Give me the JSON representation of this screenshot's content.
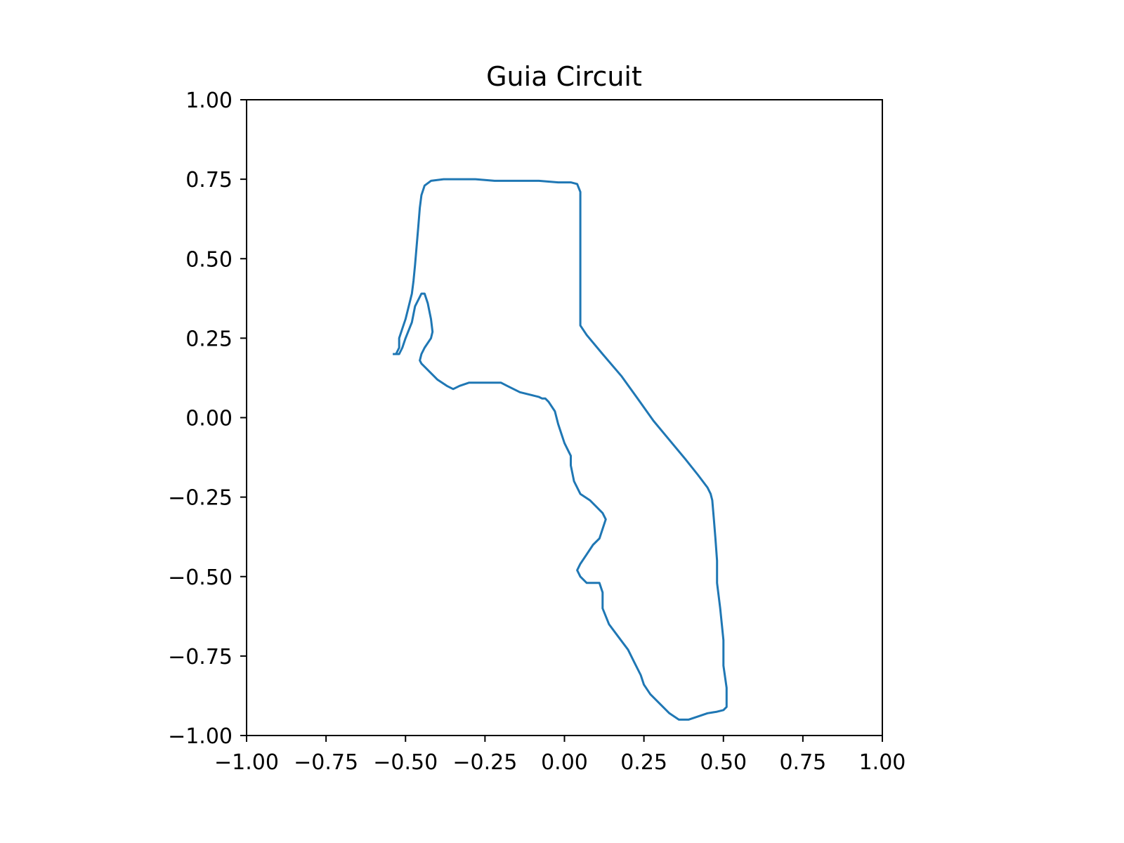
{
  "chart_data": {
    "type": "line",
    "title": "Guia Circuit",
    "xlabel": "",
    "ylabel": "",
    "xlim": [
      -1.0,
      1.0
    ],
    "ylim": [
      -1.0,
      1.0
    ],
    "grid": false,
    "xticks": [
      -1.0,
      -0.75,
      -0.5,
      -0.25,
      0.0,
      0.25,
      0.5,
      0.75,
      1.0
    ],
    "yticks": [
      -1.0,
      -0.75,
      -0.5,
      -0.25,
      0.0,
      0.25,
      0.5,
      0.75,
      1.0
    ],
    "xtick_labels": [
      "−1.00",
      "−0.75",
      "−0.50",
      "−0.25",
      "0.00",
      "0.25",
      "0.50",
      "0.75",
      "1.00"
    ],
    "ytick_labels": [
      "−1.00",
      "−0.75",
      "−0.50",
      "−0.25",
      "0.00",
      "0.25",
      "0.50",
      "0.75",
      "1.00"
    ],
    "line_color": "#1f77b4",
    "series": [
      {
        "x": [
          -0.54,
          -0.52,
          -0.51,
          -0.5,
          -0.48,
          -0.47,
          -0.45,
          -0.44,
          -0.43,
          -0.42,
          -0.415,
          -0.42,
          -0.44,
          -0.45,
          -0.455,
          -0.45,
          -0.44,
          -0.4,
          -0.37,
          -0.35,
          -0.33,
          -0.3,
          -0.25,
          -0.23,
          -0.2,
          -0.18,
          -0.14,
          -0.1,
          -0.08,
          -0.07,
          -0.06,
          -0.05,
          -0.03,
          -0.02,
          -0.01,
          0.0,
          0.01,
          0.02,
          0.02,
          0.03,
          0.05,
          0.08,
          0.1,
          0.12,
          0.13,
          0.12,
          0.11,
          0.09,
          0.07,
          0.05,
          0.04,
          0.05,
          0.07,
          0.09,
          0.11,
          0.12,
          0.12,
          0.14,
          0.17,
          0.2,
          0.22,
          0.24,
          0.25,
          0.27,
          0.3,
          0.33,
          0.36,
          0.39,
          0.42,
          0.45,
          0.48,
          0.5,
          0.51,
          0.51,
          0.5,
          0.5,
          0.49,
          0.48,
          0.48,
          0.475,
          0.47,
          0.465,
          0.46,
          0.45,
          0.42,
          0.38,
          0.33,
          0.28,
          0.23,
          0.18,
          0.12,
          0.07,
          0.05,
          0.05,
          0.05,
          0.05,
          0.05,
          0.05,
          0.04,
          0.02,
          -0.02,
          -0.08,
          -0.15,
          -0.22,
          -0.28,
          -0.34,
          -0.38,
          -0.42,
          -0.44,
          -0.45,
          -0.455,
          -0.46,
          -0.465,
          -0.47,
          -0.475,
          -0.48,
          -0.49,
          -0.5,
          -0.51,
          -0.52,
          -0.52,
          -0.53,
          -0.54
        ],
        "y": [
          0.2,
          0.2,
          0.22,
          0.25,
          0.3,
          0.35,
          0.39,
          0.39,
          0.36,
          0.31,
          0.27,
          0.25,
          0.22,
          0.2,
          0.18,
          0.17,
          0.16,
          0.12,
          0.1,
          0.09,
          0.1,
          0.11,
          0.11,
          0.11,
          0.11,
          0.1,
          0.08,
          0.07,
          0.065,
          0.06,
          0.06,
          0.05,
          0.02,
          -0.02,
          -0.05,
          -0.08,
          -0.1,
          -0.12,
          -0.15,
          -0.2,
          -0.24,
          -0.26,
          -0.28,
          -0.3,
          -0.32,
          -0.35,
          -0.38,
          -0.4,
          -0.43,
          -0.46,
          -0.48,
          -0.5,
          -0.52,
          -0.52,
          -0.52,
          -0.55,
          -0.6,
          -0.65,
          -0.69,
          -0.73,
          -0.77,
          -0.81,
          -0.84,
          -0.87,
          -0.9,
          -0.93,
          -0.95,
          -0.95,
          -0.94,
          -0.93,
          -0.925,
          -0.92,
          -0.91,
          -0.85,
          -0.78,
          -0.7,
          -0.6,
          -0.52,
          -0.45,
          -0.38,
          -0.32,
          -0.26,
          -0.24,
          -0.22,
          -0.18,
          -0.13,
          -0.07,
          -0.01,
          0.06,
          0.13,
          0.2,
          0.26,
          0.29,
          0.35,
          0.45,
          0.55,
          0.65,
          0.71,
          0.735,
          0.74,
          0.74,
          0.745,
          0.745,
          0.745,
          0.75,
          0.75,
          0.75,
          0.745,
          0.73,
          0.7,
          0.66,
          0.6,
          0.54,
          0.48,
          0.43,
          0.39,
          0.35,
          0.31,
          0.28,
          0.25,
          0.22,
          0.2,
          0.2
        ]
      }
    ]
  }
}
